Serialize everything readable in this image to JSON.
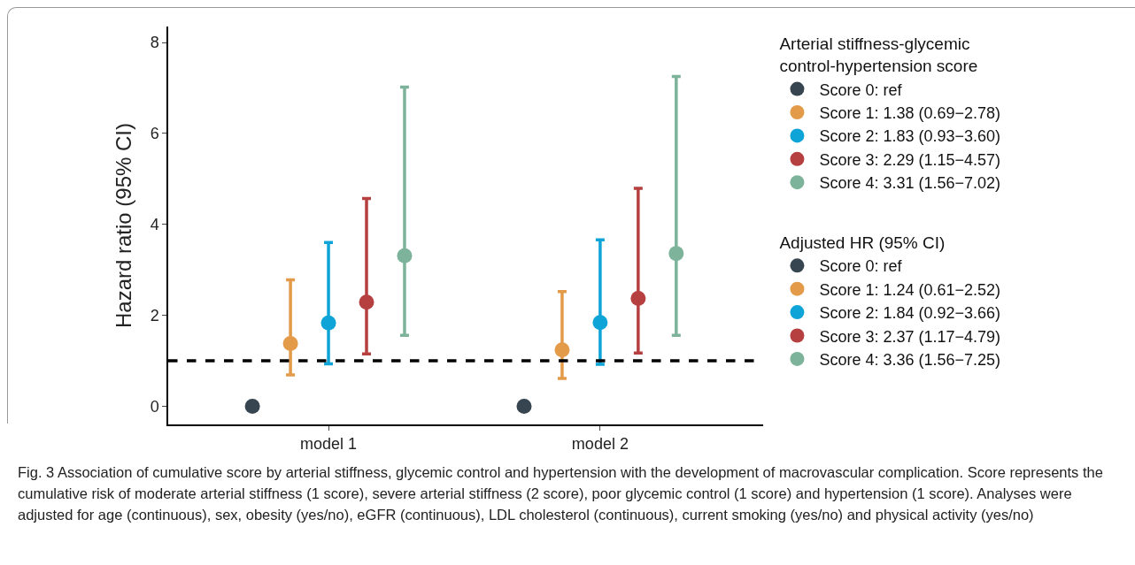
{
  "chart_data": {
    "type": "scatter",
    "ylabel": "Hazard ratio (95% CI)",
    "categories": [
      "model 1",
      "model 2"
    ],
    "ylim": [
      -0.4,
      8.35
    ],
    "yticks": [
      0,
      2,
      4,
      6,
      8
    ],
    "grid": false,
    "legend": "right",
    "marker": "circle",
    "legend_title": [
      "Arterial stiffness-glycemic control-hypertension score",
      "Adjusted HR (95% CI)"
    ],
    "series": [
      {
        "name": "Score 0: ref",
        "color": "#36454f",
        "values": [
          0,
          null
        ],
        "errors": [
          null,
          null
        ]
      },
      {
        "name": "Score 1: 1.38 (0.69−2.78)",
        "color": "#e39b4a",
        "values": [
          1.38,
          null
        ],
        "errors": [
          [
            0.69,
            2.78
          ],
          null
        ]
      },
      {
        "name": "Score 2: 1.83 (0.93−3.60)",
        "color": "#0fa4d8",
        "values": [
          1.83,
          null
        ],
        "errors": [
          [
            0.93,
            3.6
          ],
          null
        ]
      },
      {
        "name": "Score 3: 2.29 (1.15−4.57)",
        "color": "#b5403f",
        "values": [
          2.29,
          null
        ],
        "errors": [
          [
            1.15,
            4.57
          ],
          null
        ]
      },
      {
        "name": "Score 4: 3.31 (1.56−7.02)",
        "color": "#7db39a",
        "values": [
          3.31,
          null
        ],
        "errors": [
          [
            1.56,
            7.02
          ],
          null
        ]
      },
      {
        "name": "Score 0: ref",
        "color": "#36454f",
        "values": [
          null,
          0
        ],
        "errors": [
          null,
          null
        ]
      },
      {
        "name": "Score 1: 1.24 (0.61−2.52)",
        "color": "#e39b4a",
        "values": [
          null,
          1.24
        ],
        "errors": [
          null,
          [
            0.61,
            2.52
          ]
        ]
      },
      {
        "name": "Score 2: 1.84 (0.92−3.66)",
        "color": "#0fa4d8",
        "values": [
          null,
          1.84
        ],
        "errors": [
          null,
          [
            0.92,
            3.66
          ]
        ]
      },
      {
        "name": "Score 3: 2.37 (1.17−4.79)",
        "color": "#b5403f",
        "values": [
          null,
          2.37
        ],
        "errors": [
          null,
          [
            1.17,
            4.79
          ]
        ]
      },
      {
        "name": "Score 4: 3.36 (1.56−7.25)",
        "color": "#7db39a",
        "values": [
          null,
          3.36
        ],
        "errors": [
          null,
          [
            1.56,
            7.25
          ]
        ]
      }
    ],
    "ref_lines": [
      {
        "axis": "y",
        "value": 1,
        "color": "#000000",
        "line_style": "dashed"
      }
    ],
    "annotations": [
      "Fig. 3 Association of cumulative score by arterial stiffness, glycemic control and hypertension with the development of macrovascular complication. Score represents the cumulative risk of moderate arterial stiffness (1 score), severe arterial stiffness (2 score), poor glycemic control (1 score) and hypertension (1 score). Analyses were adjusted for age (continuous), sex, obesity (yes/no), eGFR (continuous), LDL cholesterol (continuous), current smoking (yes/no) and physical activity (yes/no)"
    ]
  }
}
